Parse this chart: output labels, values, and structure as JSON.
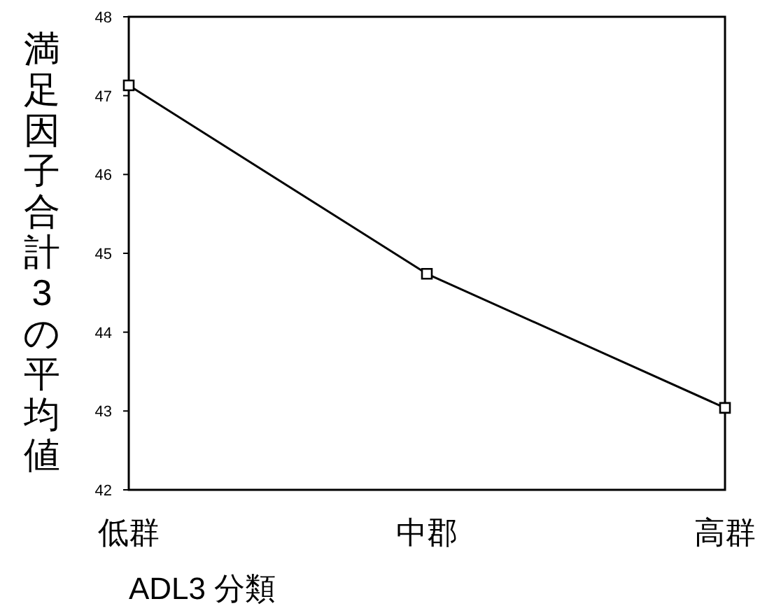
{
  "chart_data": {
    "type": "line",
    "xlabel": "ADL3 分類",
    "ylabel": "満足因子合計3の平均値",
    "categories": [
      "低群",
      "中郡",
      "高群"
    ],
    "series": [
      {
        "color": "#000000",
        "values": [
          47.13,
          44.74,
          43.04
        ]
      }
    ],
    "ylim": [
      42,
      48
    ],
    "yticks": [
      42,
      43,
      44,
      45,
      46,
      47,
      48
    ],
    "marker": "square",
    "grid": false
  }
}
